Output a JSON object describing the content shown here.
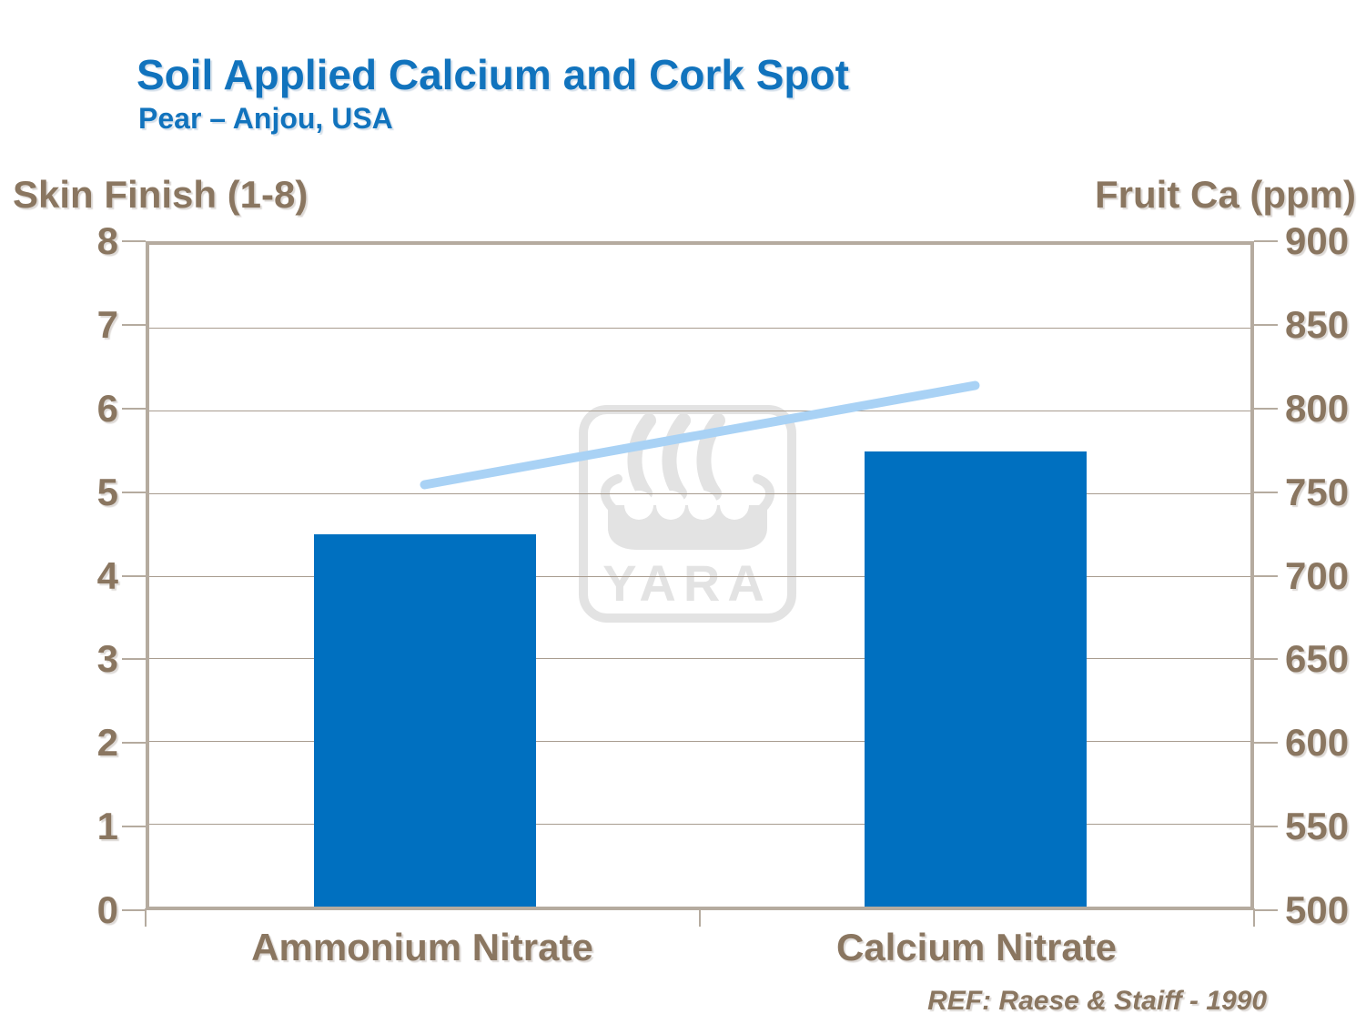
{
  "slide": {
    "title": "Soil Applied Calcium and Cork Spot",
    "subtitle": "Pear – Anjou, USA",
    "reference": "REF: Raese & Staiff - 1990"
  },
  "watermark": {
    "text": "YARA"
  },
  "colors": {
    "title_blue": "#1173bd",
    "bar_blue": "#0070c0",
    "line_light_blue": "#a9d2f5",
    "axis_taupe_text": "#8a7660",
    "frame_taupe": "#b5ab9f",
    "gridline_taupe": "#a89c8f",
    "watermark_gray": "#e3e3e3"
  },
  "chart_data": {
    "type": "bar",
    "title": "Soil Applied Calcium and Cork Spot",
    "subtitle": "Pear – Anjou, USA",
    "categories": [
      "Ammonium Nitrate",
      "Calcium Nitrate"
    ],
    "series": [
      {
        "name": "Skin Finish",
        "render": "bar",
        "axis": "left",
        "color": "#0070c0",
        "values": [
          4.5,
          5.5
        ]
      },
      {
        "name": "Fruit Ca",
        "render": "line",
        "axis": "right",
        "color": "#a9d2f5",
        "values": [
          755,
          815
        ]
      }
    ],
    "left_axis": {
      "label": "Skin Finish (1-8)",
      "min": 0,
      "max": 8,
      "step": 1,
      "ticks": [
        "0",
        "1",
        "2",
        "3",
        "4",
        "5",
        "6",
        "7",
        "8"
      ]
    },
    "right_axis": {
      "label": "Fruit Ca (ppm)",
      "min": 500,
      "max": 900,
      "step": 50,
      "ticks": [
        "500",
        "550",
        "600",
        "650",
        "700",
        "750",
        "800",
        "850",
        "900"
      ]
    },
    "grid": true,
    "legend": false
  }
}
